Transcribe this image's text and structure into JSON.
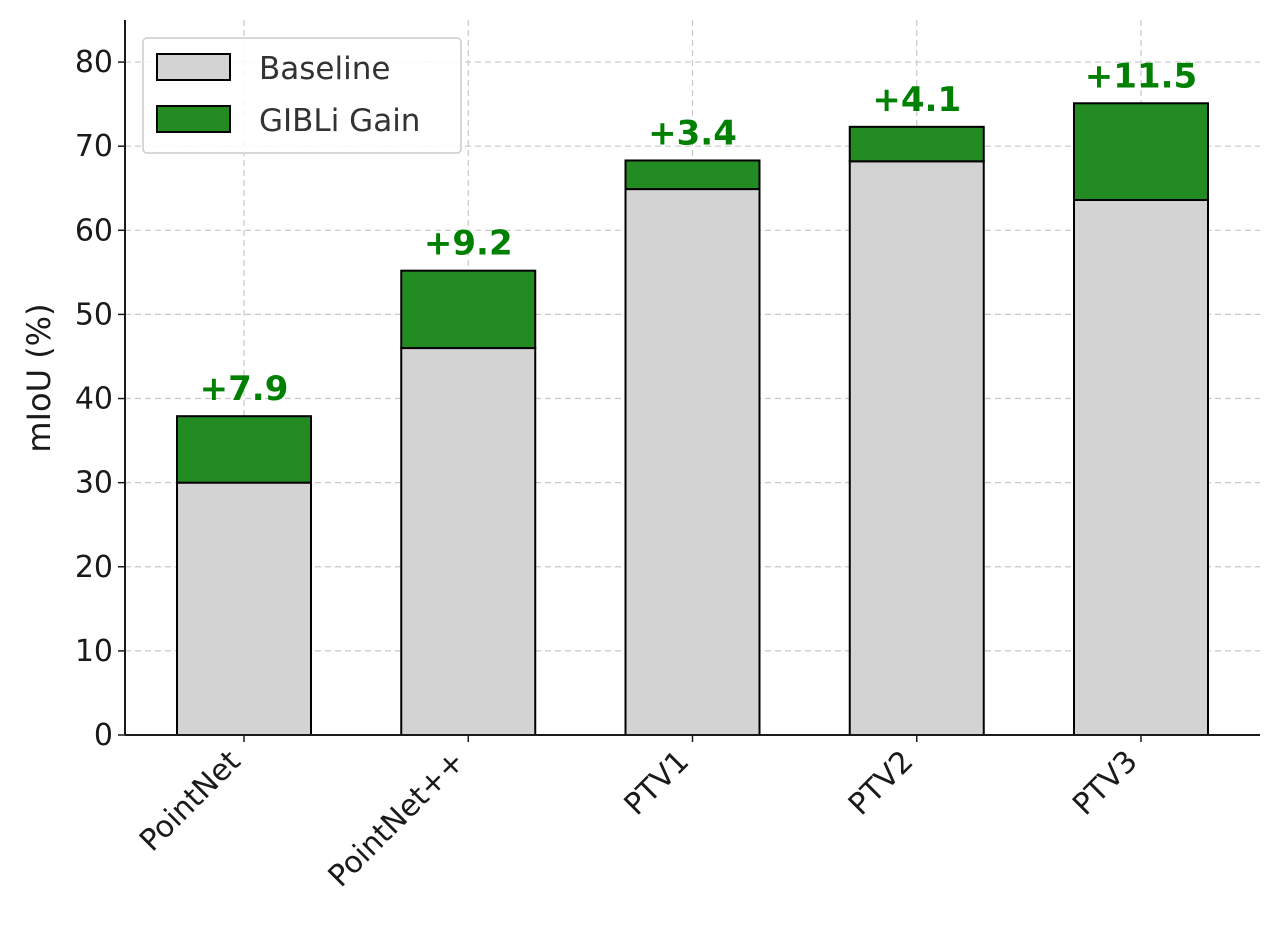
{
  "chart_data": {
    "type": "bar",
    "stacked": true,
    "categories": [
      "PointNet",
      "PointNet++",
      "PTV1",
      "PTV2",
      "PTV3"
    ],
    "series": [
      {
        "name": "Baseline",
        "values": [
          30.0,
          46.0,
          64.9,
          68.2,
          63.6
        ],
        "color": "#d3d3d3"
      },
      {
        "name": "GIBLi Gain",
        "values": [
          7.9,
          9.2,
          3.4,
          4.1,
          11.5
        ],
        "color": "#228b22"
      }
    ],
    "gain_labels": [
      "+7.9",
      "+9.2",
      "+3.4",
      "+4.1",
      "+11.5"
    ],
    "gain_label_color": "#008000",
    "title": "",
    "xlabel": "",
    "ylabel": "mIoU (%)",
    "ylim": [
      0,
      85
    ],
    "yticks": [
      0,
      10,
      20,
      30,
      40,
      50,
      60,
      70,
      80
    ],
    "grid": true,
    "legend": "top-left"
  }
}
